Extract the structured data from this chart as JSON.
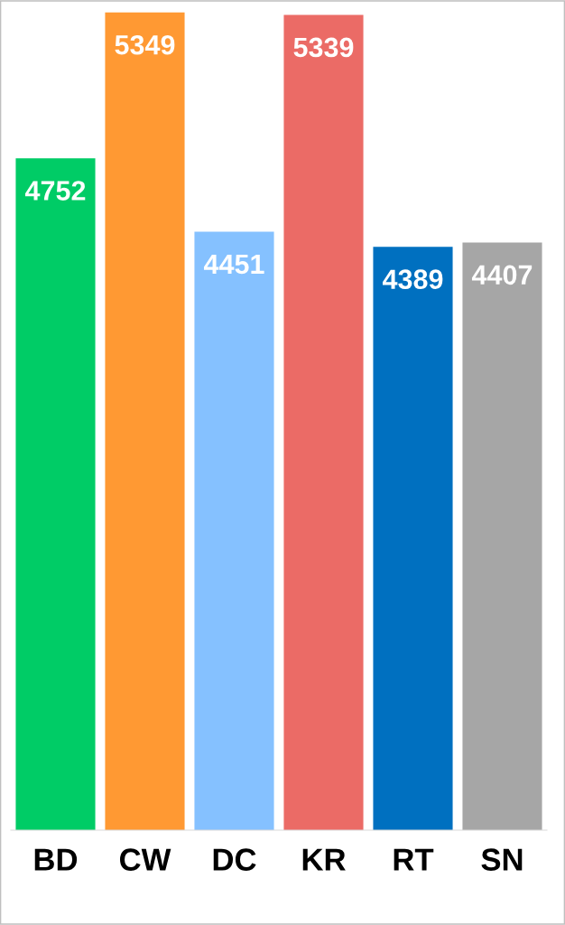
{
  "chart_data": {
    "type": "bar",
    "categories": [
      "BD",
      "CW",
      "DC",
      "KR",
      "RT",
      "SN"
    ],
    "values": [
      4752,
      5349,
      4451,
      5339,
      4389,
      4407
    ],
    "colors": [
      "#00cc66",
      "#ff9933",
      "#85c1ff",
      "#eb6b66",
      "#0070c0",
      "#a6a6a6"
    ],
    "ylim": [
      2000,
      5400
    ],
    "tick_labels": "x",
    "data_labels": true,
    "grid": false,
    "legend": false
  }
}
